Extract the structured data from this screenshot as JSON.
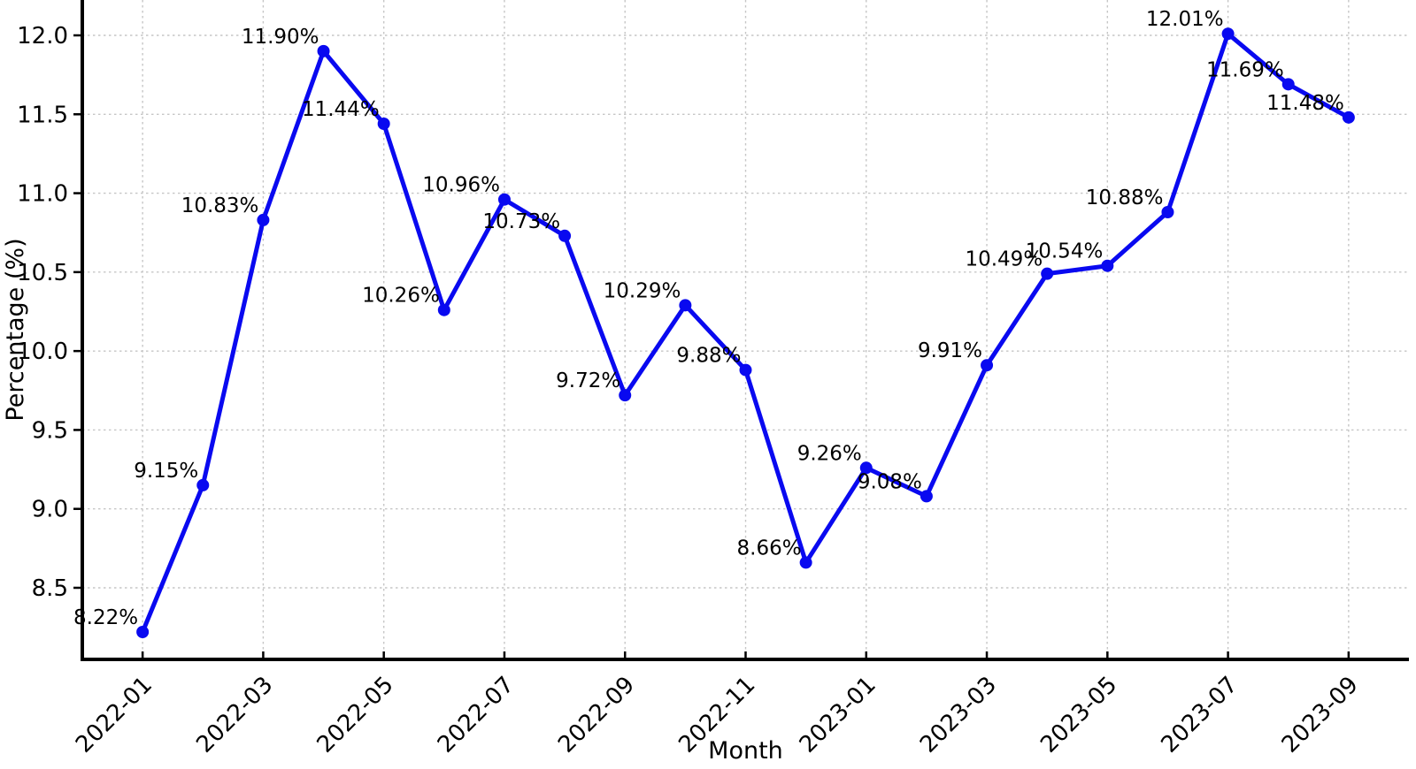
{
  "chart_data": {
    "type": "line",
    "title": "",
    "xlabel": "Month",
    "ylabel": "Percentage (%)",
    "x": [
      "2022-01",
      "2022-02",
      "2022-03",
      "2022-04",
      "2022-05",
      "2022-06",
      "2022-07",
      "2022-08",
      "2022-09",
      "2022-10",
      "2022-11",
      "2022-12",
      "2023-01",
      "2023-02",
      "2023-03",
      "2023-04",
      "2023-05",
      "2023-06",
      "2023-07",
      "2023-08",
      "2023-09"
    ],
    "values": [
      8.22,
      9.15,
      10.83,
      11.9,
      11.44,
      10.26,
      10.96,
      10.73,
      9.72,
      10.29,
      9.88,
      8.66,
      9.26,
      9.08,
      9.91,
      10.49,
      10.54,
      10.88,
      12.01,
      11.69,
      11.48
    ],
    "point_labels": [
      "8.22%",
      "9.15%",
      "10.83%",
      "11.90%",
      "11.44%",
      "10.26%",
      "10.96%",
      "10.73%",
      "9.72%",
      "10.29%",
      "9.88%",
      "8.66%",
      "9.26%",
      "9.08%",
      "9.91%",
      "10.49%",
      "10.54%",
      "10.88%",
      "12.01%",
      "11.69%",
      "11.48%"
    ],
    "x_tick_labels": [
      "2022-01",
      "2022-03",
      "2022-05",
      "2022-07",
      "2022-09",
      "2022-11",
      "2023-01",
      "2023-03",
      "2023-05",
      "2023-07",
      "2023-09"
    ],
    "x_tick_step": 2,
    "y_ticks": [
      8.5,
      9.0,
      9.5,
      10.0,
      10.5,
      11.0,
      11.5,
      12.0
    ],
    "y_tick_labels": [
      "8.5",
      "9.0",
      "9.5",
      "10.0",
      "10.5",
      "11.0",
      "11.5",
      "12.0"
    ],
    "ylim": [
      8.05,
      12.22
    ],
    "grid": true,
    "grid_style": "dotted",
    "legend_position": "none",
    "line_color": "#0909f0",
    "marker_color": "#0909f0",
    "grid_color": "#c6c6c6",
    "axis_color": "#000000",
    "label_color": "#111111"
  }
}
